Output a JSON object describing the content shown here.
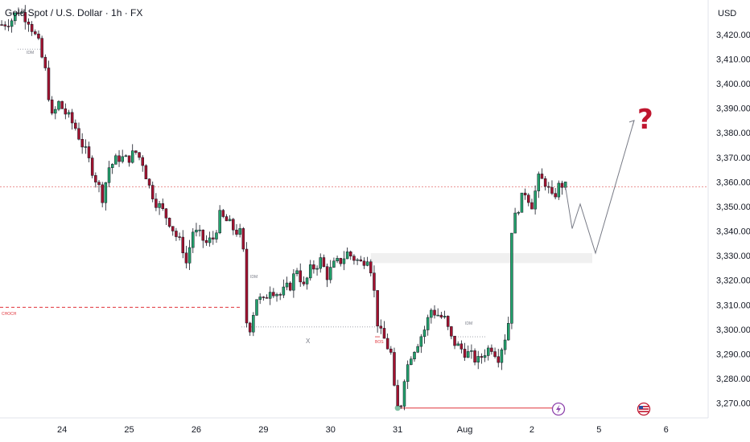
{
  "chart_data": {
    "type": "candlestick",
    "title": "Gold Spot / U.S. Dollar · 1h · FX",
    "currency": "USD",
    "ylim": [
      3264,
      3434
    ],
    "y_ticks": [
      3420,
      3410,
      3400,
      3390,
      3380,
      3370,
      3360,
      3350,
      3340,
      3330,
      3320,
      3310,
      3300,
      3290,
      3280,
      3270
    ],
    "y_tick_labels": [
      "3,420.00",
      "3,410.00",
      "3,400.00",
      "3,390.00",
      "3,380.00",
      "3,370.00",
      "3,360.00",
      "3,350.00",
      "3,340.00",
      "3,330.00",
      "3,320.00",
      "3,310.00",
      "3,300.00",
      "3,290.00",
      "3,280.00",
      "3,270.00"
    ],
    "x_labels": [
      {
        "label": "24",
        "bar": 18
      },
      {
        "label": "25",
        "bar": 38
      },
      {
        "label": "26",
        "bar": 58
      },
      {
        "label": "29",
        "bar": 78
      },
      {
        "label": "30",
        "bar": 98
      },
      {
        "label": "31",
        "bar": 118
      },
      {
        "label": "Aug",
        "bar": 138
      },
      {
        "label": "2",
        "bar": 158
      },
      {
        "label": "5",
        "bar": 178
      },
      {
        "label": "6",
        "bar": 198
      }
    ],
    "anchors": [
      [
        0,
        3424
      ],
      [
        3,
        3426
      ],
      [
        5,
        3430
      ],
      [
        8,
        3426
      ],
      [
        11,
        3416
      ],
      [
        13,
        3405
      ],
      [
        15,
        3386
      ],
      [
        17,
        3392
      ],
      [
        19,
        3388
      ],
      [
        22,
        3382
      ],
      [
        25,
        3372
      ],
      [
        27,
        3365
      ],
      [
        30,
        3354
      ],
      [
        32,
        3366
      ],
      [
        35,
        3370
      ],
      [
        37,
        3369
      ],
      [
        40,
        3372
      ],
      [
        42,
        3368
      ],
      [
        44,
        3358
      ],
      [
        46,
        3352
      ],
      [
        48,
        3348
      ],
      [
        50,
        3344
      ],
      [
        52,
        3338
      ],
      [
        54,
        3333
      ],
      [
        55,
        3327
      ],
      [
        57,
        3340
      ],
      [
        59,
        3338
      ],
      [
        61,
        3335
      ],
      [
        63,
        3337
      ],
      [
        65,
        3346
      ],
      [
        67,
        3344
      ],
      [
        69,
        3341
      ],
      [
        71,
        3339
      ],
      [
        72,
        3331
      ],
      [
        73,
        3303
      ],
      [
        74,
        3301
      ],
      [
        76,
        3313
      ],
      [
        78,
        3311
      ],
      [
        80,
        3317
      ],
      [
        83,
        3314
      ],
      [
        86,
        3318
      ],
      [
        88,
        3325
      ],
      [
        90,
        3317
      ],
      [
        92,
        3324
      ],
      [
        95,
        3328
      ],
      [
        97,
        3322
      ],
      [
        99,
        3326
      ],
      [
        101,
        3328
      ],
      [
        103,
        3331
      ],
      [
        105,
        3329
      ],
      [
        107,
        3327
      ],
      [
        109,
        3330
      ],
      [
        110,
        3325
      ],
      [
        111,
        3315
      ],
      [
        112,
        3303
      ],
      [
        113,
        3298
      ],
      [
        114,
        3296
      ],
      [
        116,
        3290
      ],
      [
        117,
        3275
      ],
      [
        118,
        3268
      ],
      [
        119,
        3270
      ],
      [
        120,
        3281
      ],
      [
        122,
        3290
      ],
      [
        124,
        3295
      ],
      [
        126,
        3300
      ],
      [
        128,
        3308
      ],
      [
        130,
        3306
      ],
      [
        132,
        3304
      ],
      [
        134,
        3296
      ],
      [
        136,
        3293
      ],
      [
        138,
        3291
      ],
      [
        140,
        3289
      ],
      [
        142,
        3287
      ],
      [
        144,
        3291
      ],
      [
        146,
        3293
      ],
      [
        148,
        3289
      ],
      [
        150,
        3297
      ],
      [
        151,
        3303
      ],
      [
        152,
        3341
      ],
      [
        154,
        3350
      ],
      [
        156,
        3356
      ],
      [
        158,
        3351
      ],
      [
        160,
        3361
      ],
      [
        162,
        3360
      ],
      [
        164,
        3353
      ],
      [
        166,
        3358
      ],
      [
        168,
        3360
      ]
    ],
    "annotations": {
      "idm_labels": [
        "IDM",
        "IDM",
        "IDM"
      ],
      "bos_label": "BOS",
      "choch_label": "CHOCH",
      "x_marker": "X",
      "question_mark": "?",
      "choch_level": 3309,
      "resistance_level": 3358,
      "supply_zone": [
        3327,
        3331
      ],
      "low_level": 3268,
      "projection": [
        3358,
        3341,
        3351,
        3331,
        3385
      ]
    }
  },
  "colors": {
    "up": "#22a06b",
    "down": "#a3122f",
    "choch": "#e0333a",
    "resistance": "#e57373",
    "zone": "#f0f0f0",
    "question": "#c0162f",
    "event_purple": "#8e44ad"
  },
  "icons": {
    "lightning": "lightning-event-icon",
    "flag": "us-flag-event-icon"
  }
}
